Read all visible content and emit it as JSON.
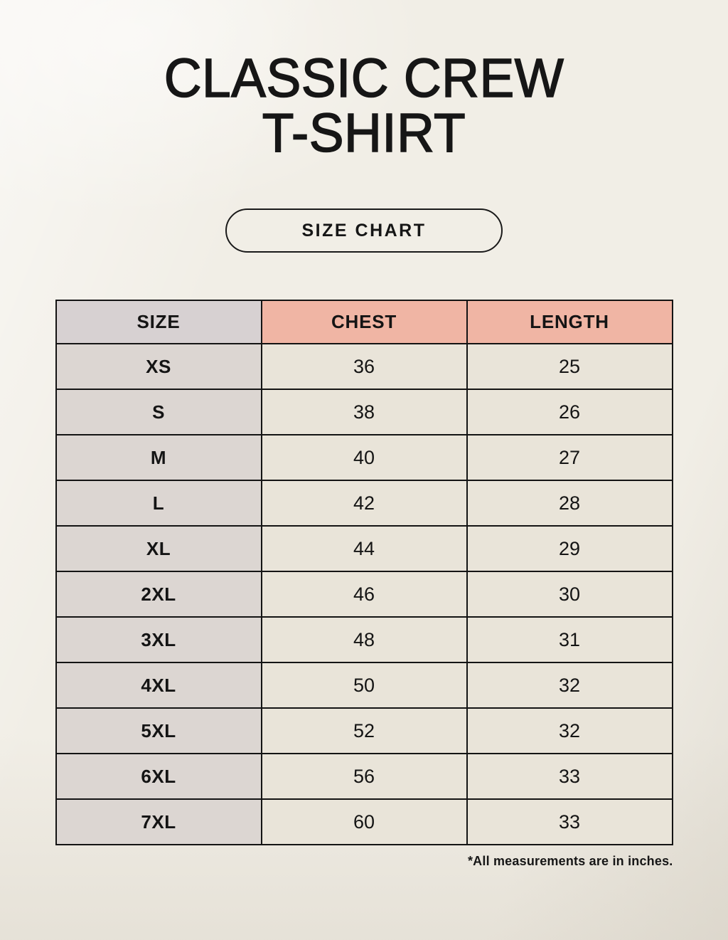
{
  "page": {
    "title_line1": "CLASSIC CREW",
    "title_line2": "T-SHIRT",
    "button_label": "SIZE CHART",
    "footnote": "*All measurements are in inches."
  },
  "chart_data": {
    "type": "table",
    "title": "CLASSIC CREW T-SHIRT",
    "subtitle": "SIZE CHART",
    "columns": [
      "SIZE",
      "CHEST",
      "LENGTH"
    ],
    "rows": [
      [
        "XS",
        "36",
        "25"
      ],
      [
        "S",
        "38",
        "26"
      ],
      [
        "M",
        "40",
        "27"
      ],
      [
        "L",
        "42",
        "28"
      ],
      [
        "XL",
        "44",
        "29"
      ],
      [
        "2XL",
        "46",
        "30"
      ],
      [
        "3XL",
        "48",
        "31"
      ],
      [
        "4XL",
        "50",
        "32"
      ],
      [
        "5XL",
        "52",
        "32"
      ],
      [
        "6XL",
        "56",
        "33"
      ],
      [
        "7XL",
        "60",
        "33"
      ]
    ],
    "units_note": "*All measurements are in inches."
  },
  "colors": {
    "background": "#f1eee6",
    "header_size_bg": "#d7d1d2",
    "header_measure_bg": "#f0b5a4",
    "body_size_bg": "#dcd6d2",
    "body_cell_bg": "#e9e4d9",
    "border": "#141414",
    "text": "#141414"
  }
}
